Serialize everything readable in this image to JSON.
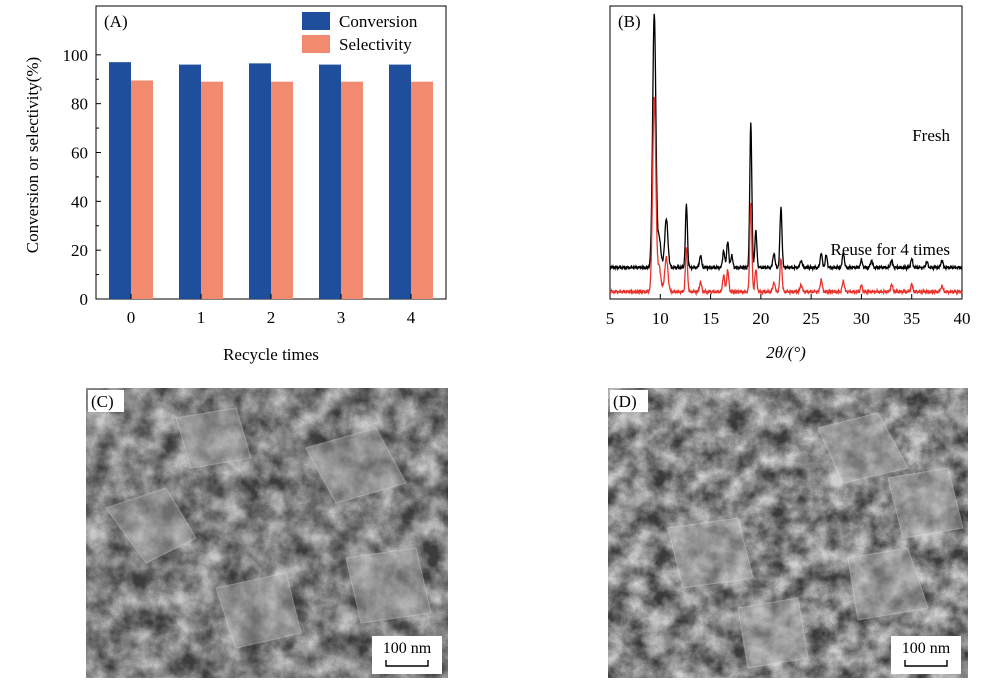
{
  "panels": {
    "A": {
      "label": "(A)"
    },
    "B": {
      "label": "(B)"
    },
    "C": {
      "label": "(C)",
      "scale_bar": "100 nm"
    },
    "D": {
      "label": "(D)",
      "scale_bar": "100 nm"
    }
  },
  "chart_data": [
    {
      "panel": "A",
      "type": "bar",
      "xlabel": "Recycle times",
      "ylabel": "Conversion or selectivity(%)",
      "categories": [
        "0",
        "1",
        "2",
        "3",
        "4"
      ],
      "ylim": [
        0,
        120
      ],
      "yticks": [
        0,
        20,
        40,
        60,
        80,
        100
      ],
      "legend_position": "top-right",
      "series": [
        {
          "name": "Conversion",
          "color": "#1f4e9c",
          "values": [
            97,
            96,
            96.5,
            96,
            96
          ]
        },
        {
          "name": "Selectivity",
          "color": "#f28a6f",
          "values": [
            89.5,
            89,
            89,
            89,
            89
          ]
        }
      ]
    },
    {
      "panel": "B",
      "type": "line",
      "xlabel": "2θ/(°)",
      "xlim": [
        5,
        40
      ],
      "xticks": [
        5,
        10,
        15,
        20,
        25,
        30,
        35,
        40
      ],
      "y_ticks_shown": false,
      "series": [
        {
          "name": "Fresh",
          "color": "#000000",
          "baseline": 1.0,
          "peaks": [
            [
              9.4,
              10.5
            ],
            [
              9.9,
              1.2
            ],
            [
              10.6,
              2.0
            ],
            [
              12.6,
              2.6
            ],
            [
              14.0,
              0.5
            ],
            [
              16.3,
              0.7
            ],
            [
              16.7,
              1.1
            ],
            [
              17.1,
              0.5
            ],
            [
              19.0,
              6.0
            ],
            [
              19.5,
              1.5
            ],
            [
              21.3,
              0.6
            ],
            [
              22.0,
              2.5
            ],
            [
              24.0,
              0.3
            ],
            [
              26.0,
              0.6
            ],
            [
              26.5,
              0.5
            ],
            [
              28.2,
              0.6
            ],
            [
              30.0,
              0.3
            ],
            [
              31.0,
              0.3
            ],
            [
              33.0,
              0.3
            ],
            [
              35.0,
              0.35
            ],
            [
              36.5,
              0.25
            ],
            [
              38.0,
              0.3
            ]
          ]
        },
        {
          "name": "Reuse for 4 times",
          "color": "#e8312a",
          "baseline": 0.0,
          "peaks": [
            [
              9.4,
              8.0
            ],
            [
              9.9,
              1.0
            ],
            [
              10.6,
              1.4
            ],
            [
              12.6,
              1.8
            ],
            [
              14.0,
              0.4
            ],
            [
              16.3,
              0.7
            ],
            [
              16.7,
              0.9
            ],
            [
              19.0,
              3.7
            ],
            [
              19.5,
              0.9
            ],
            [
              21.3,
              0.4
            ],
            [
              22.0,
              1.4
            ],
            [
              24.0,
              0.3
            ],
            [
              26.0,
              0.5
            ],
            [
              28.2,
              0.45
            ],
            [
              30.0,
              0.25
            ],
            [
              33.0,
              0.3
            ],
            [
              35.0,
              0.3
            ],
            [
              38.0,
              0.25
            ]
          ]
        }
      ]
    }
  ]
}
